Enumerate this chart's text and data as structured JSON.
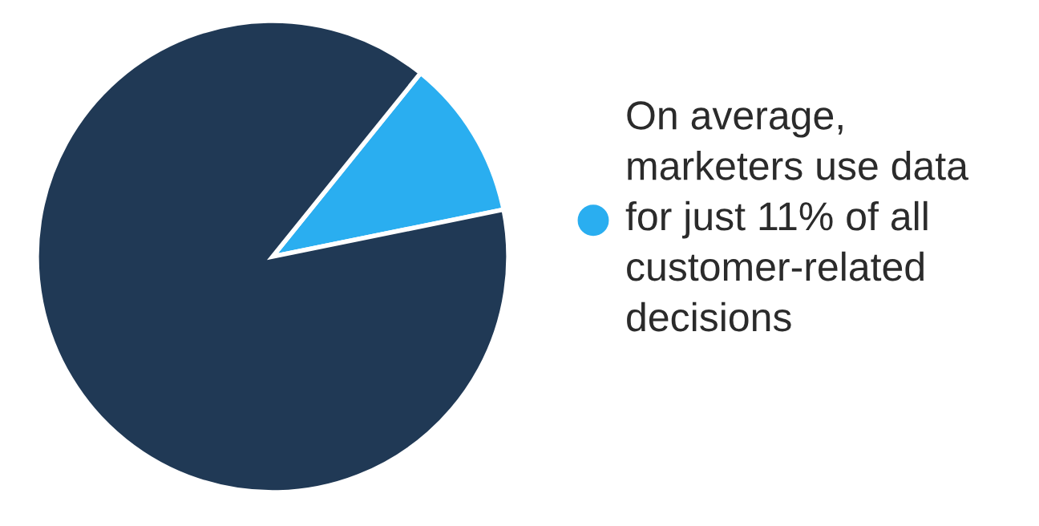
{
  "chart_data": {
    "type": "pie",
    "categories": [
      "On average,\nmarketers use data\nfor just 11% of all\ncustomer-related\ndecisions",
      null
    ],
    "values": [
      11,
      89
    ],
    "colors": [
      "#2aaef0",
      "#203955"
    ],
    "legend": "right"
  }
}
